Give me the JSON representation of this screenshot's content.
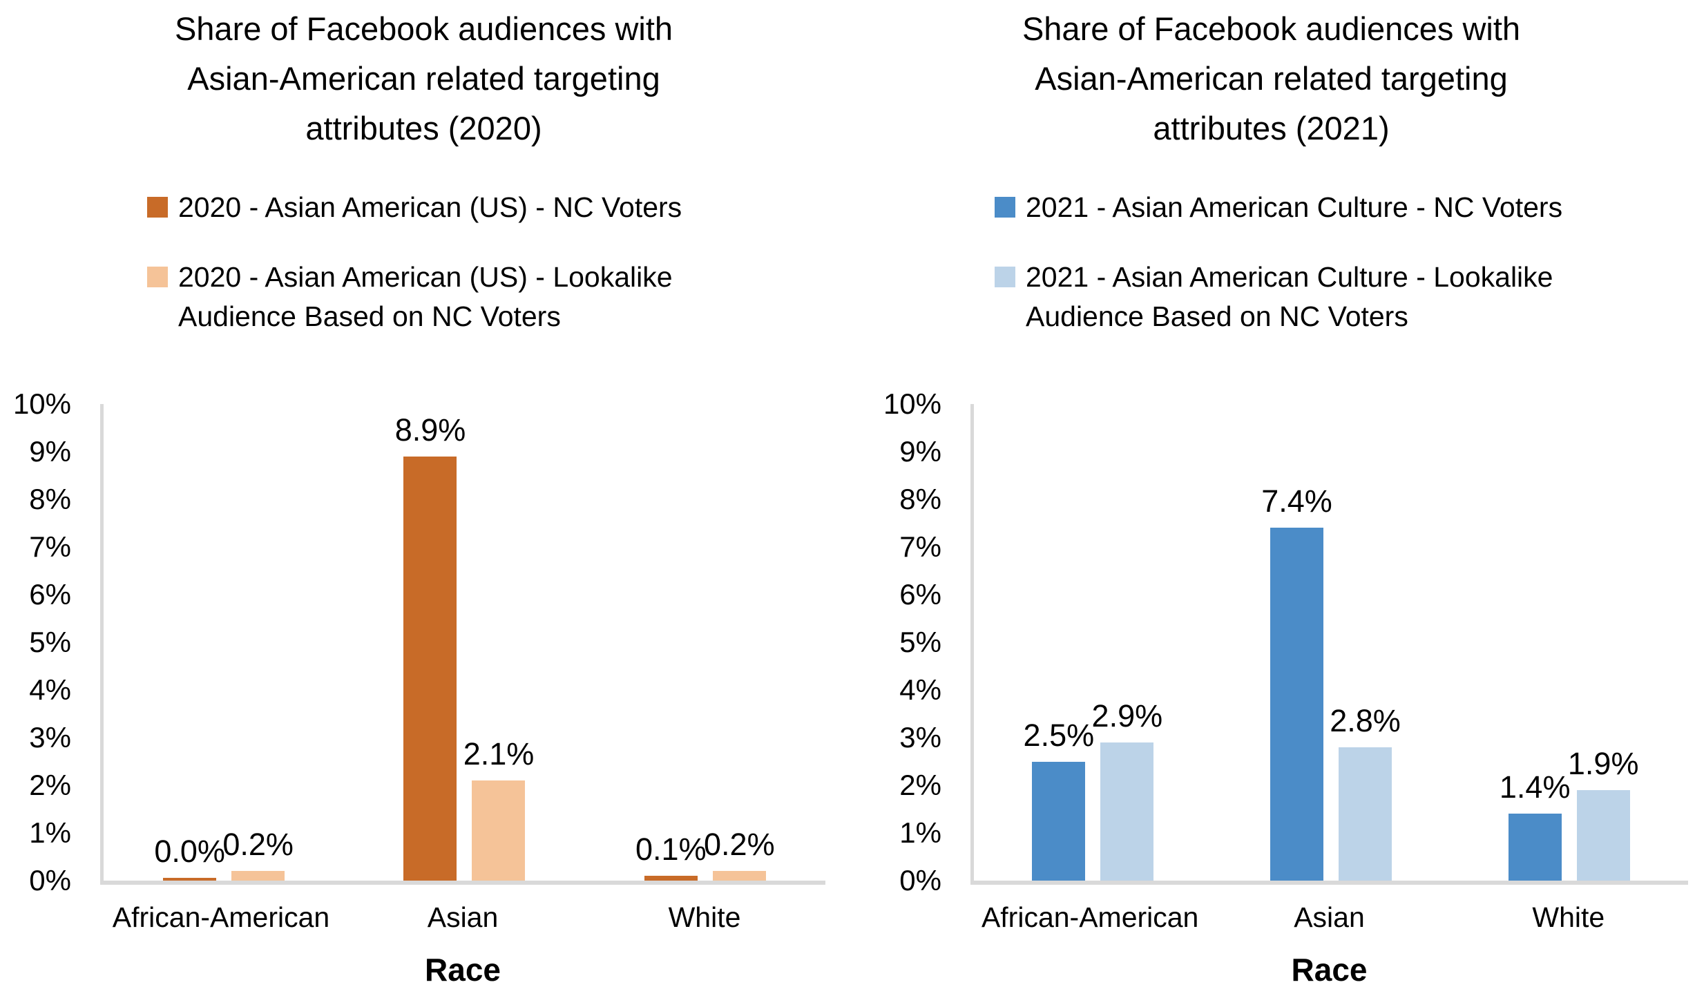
{
  "page": {
    "background": "#ffffff",
    "axis_color": "#D9D9D9",
    "text_color": "#000000"
  },
  "chart_data": [
    {
      "type": "bar",
      "title": "Share of Facebook audiences with Asian-American related targeting attributes (2020)",
      "title_lines": [
        "Share of Facebook audiences with",
        "Asian-American related targeting",
        "attributes (2020)"
      ],
      "categories": [
        "African-American",
        "Asian",
        "White"
      ],
      "series": [
        {
          "name": "2020 - Asian American (US) - NC Voters",
          "legend_lines": [
            "2020 - Asian American (US) - NC Voters"
          ],
          "color": "#C86B28",
          "values": [
            0.0,
            8.9,
            0.1
          ],
          "labels": [
            "0.0%",
            "8.9%",
            "0.1%"
          ]
        },
        {
          "name": "2020 - Asian American (US) - Lookalike Audience Based on NC Voters",
          "legend_lines": [
            "2020 - Asian American (US) - Lookalike",
            "Audience Based on NC Voters"
          ],
          "color": "#F5C398",
          "values": [
            0.2,
            2.1,
            0.2
          ],
          "labels": [
            "0.2%",
            "2.1%",
            "0.2%"
          ]
        }
      ],
      "xlabel": "Race",
      "ylabel": "",
      "ylim": [
        0,
        10
      ],
      "yticks": [
        "0%",
        "1%",
        "2%",
        "3%",
        "4%",
        "5%",
        "6%",
        "7%",
        "8%",
        "9%",
        "10%"
      ],
      "grid": false,
      "legend_position": "top"
    },
    {
      "type": "bar",
      "title": "Share of Facebook audiences with Asian-American related targeting attributes (2021)",
      "title_lines": [
        "Share of Facebook audiences with",
        "Asian-American related targeting",
        "attributes (2021)"
      ],
      "categories": [
        "African-American",
        "Asian",
        "White"
      ],
      "series": [
        {
          "name": "2021 - Asian American Culture - NC Voters",
          "legend_lines": [
            "2021 - Asian American Culture - NC Voters"
          ],
          "color": "#4B8CC8",
          "values": [
            2.5,
            7.4,
            1.4
          ],
          "labels": [
            "2.5%",
            "7.4%",
            "1.4%"
          ]
        },
        {
          "name": "2021 - Asian American Culture - Lookalike Audience Based on NC Voters",
          "legend_lines": [
            "2021 - Asian American Culture - Lookalike",
            "Audience Based on NC Voters"
          ],
          "color": "#BCD3E8",
          "values": [
            2.9,
            2.8,
            1.9
          ],
          "labels": [
            "2.9%",
            "2.8%",
            "1.9%"
          ]
        }
      ],
      "xlabel": "Race",
      "ylabel": "",
      "ylim": [
        0,
        10
      ],
      "yticks": [
        "0%",
        "1%",
        "2%",
        "3%",
        "4%",
        "5%",
        "6%",
        "7%",
        "8%",
        "9%",
        "10%"
      ],
      "grid": false,
      "legend_position": "top"
    }
  ]
}
